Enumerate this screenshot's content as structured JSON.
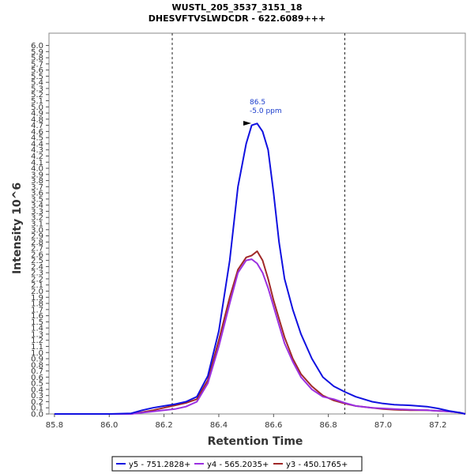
{
  "chart_data": {
    "type": "line",
    "title": "WUSTL_205_3537_3151_18",
    "subtitle": "DHESVFTVSLWDCDR - 622.6089+++",
    "xlabel": "Retention Time",
    "ylabel": "Intensity 10^6",
    "xlim": [
      85.78,
      87.3
    ],
    "ylim": [
      0.0,
      6.2
    ],
    "xticks": [
      "85.8",
      "86.0",
      "86.2",
      "86.4",
      "86.6",
      "86.8",
      "87.0",
      "87.2"
    ],
    "yticks": [
      "0.0",
      "0.1",
      "0.2",
      "0.3",
      "0.4",
      "0.5",
      "0.6",
      "0.7",
      "0.8",
      "0.9",
      "1.0",
      "1.1",
      "1.2",
      "1.3",
      "1.4",
      "1.5",
      "1.6",
      "1.7",
      "1.8",
      "1.9",
      "2.0",
      "2.1",
      "2.2",
      "2.3",
      "2.4",
      "2.5",
      "2.6",
      "2.7",
      "2.8",
      "2.9",
      "3.0",
      "3.1",
      "3.2",
      "3.3",
      "3.4",
      "3.5",
      "3.6",
      "3.7",
      "3.8",
      "3.9",
      "4.0",
      "4.1",
      "4.2",
      "4.3",
      "4.4",
      "4.5",
      "4.6",
      "4.7",
      "4.8",
      "4.9",
      "5.0",
      "5.1",
      "5.2",
      "5.3",
      "5.4",
      "5.5",
      "5.6",
      "5.7",
      "5.8",
      "5.9",
      "6.0"
    ],
    "vlines": [
      86.23,
      86.86
    ],
    "grid": false,
    "legend_position": "bottom",
    "annotation": {
      "x": 86.53,
      "y": 4.72,
      "line1": "86.5",
      "line2": "-5.0 ppm"
    },
    "series": [
      {
        "name": "y5 - 751.2828+",
        "color": "#1010e0",
        "x": [
          85.8,
          85.9,
          86.0,
          86.08,
          86.12,
          86.16,
          86.2,
          86.24,
          86.28,
          86.32,
          86.36,
          86.4,
          86.44,
          86.47,
          86.5,
          86.52,
          86.54,
          86.56,
          86.58,
          86.6,
          86.62,
          86.64,
          86.67,
          86.7,
          86.74,
          86.78,
          86.82,
          86.86,
          86.9,
          86.96,
          87.0,
          87.04,
          87.1,
          87.16,
          87.2,
          87.24,
          87.28,
          87.3
        ],
        "y": [
          0.0,
          0.0,
          0.0,
          0.01,
          0.06,
          0.1,
          0.13,
          0.16,
          0.2,
          0.28,
          0.62,
          1.35,
          2.5,
          3.7,
          4.4,
          4.7,
          4.73,
          4.6,
          4.3,
          3.6,
          2.8,
          2.2,
          1.7,
          1.3,
          0.9,
          0.6,
          0.45,
          0.36,
          0.28,
          0.2,
          0.17,
          0.15,
          0.14,
          0.12,
          0.09,
          0.05,
          0.02,
          0.0
        ]
      },
      {
        "name": "y4 - 565.2035+",
        "color": "#9b30e0",
        "x": [
          85.8,
          85.9,
          86.0,
          86.08,
          86.12,
          86.16,
          86.2,
          86.24,
          86.28,
          86.32,
          86.36,
          86.4,
          86.44,
          86.47,
          86.5,
          86.52,
          86.54,
          86.56,
          86.58,
          86.6,
          86.62,
          86.64,
          86.67,
          86.7,
          86.74,
          86.78,
          86.82,
          86.86,
          86.9,
          86.96,
          87.0,
          87.04,
          87.1,
          87.16,
          87.2,
          87.24,
          87.28,
          87.3
        ],
        "y": [
          0.0,
          0.0,
          0.0,
          0.0,
          0.02,
          0.04,
          0.06,
          0.08,
          0.12,
          0.2,
          0.5,
          1.1,
          1.8,
          2.3,
          2.5,
          2.52,
          2.45,
          2.3,
          2.05,
          1.75,
          1.45,
          1.15,
          0.85,
          0.6,
          0.4,
          0.28,
          0.24,
          0.18,
          0.13,
          0.1,
          0.09,
          0.08,
          0.07,
          0.06,
          0.05,
          0.04,
          0.02,
          0.0
        ]
      },
      {
        "name": "y3 - 450.1765+",
        "color": "#a02828",
        "x": [
          85.8,
          85.9,
          86.0,
          86.08,
          86.12,
          86.16,
          86.2,
          86.24,
          86.28,
          86.32,
          86.36,
          86.4,
          86.44,
          86.47,
          86.5,
          86.52,
          86.54,
          86.56,
          86.58,
          86.6,
          86.62,
          86.64,
          86.67,
          86.7,
          86.74,
          86.78,
          86.82,
          86.86,
          86.9,
          86.96,
          87.0,
          87.04,
          87.1,
          87.16,
          87.2,
          87.24,
          87.28,
          87.3
        ],
        "y": [
          0.0,
          0.0,
          0.0,
          0.0,
          0.03,
          0.06,
          0.1,
          0.14,
          0.18,
          0.24,
          0.55,
          1.2,
          1.9,
          2.35,
          2.55,
          2.58,
          2.65,
          2.5,
          2.2,
          1.85,
          1.55,
          1.25,
          0.9,
          0.65,
          0.45,
          0.3,
          0.22,
          0.17,
          0.13,
          0.1,
          0.08,
          0.07,
          0.06,
          0.06,
          0.05,
          0.04,
          0.02,
          0.0
        ]
      }
    ]
  }
}
